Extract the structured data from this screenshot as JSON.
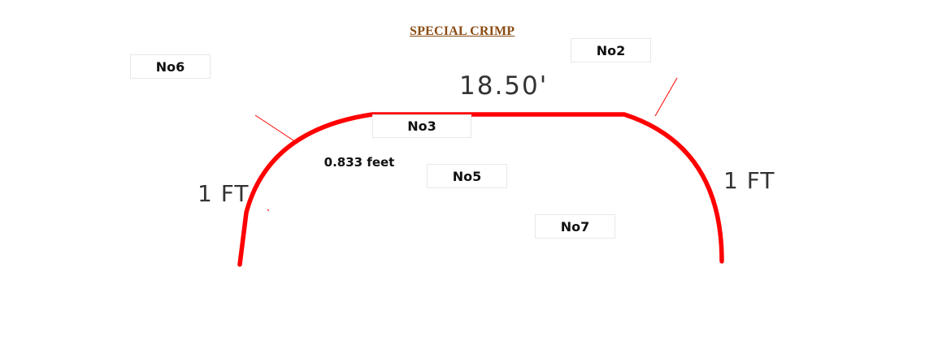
{
  "title": "SPECIAL CRIMP",
  "labels": {
    "no6": "No6",
    "no2": "No2",
    "no3": "No3",
    "no5": "No5",
    "no7": "No7"
  },
  "measurements": {
    "top_length": "18.50'",
    "radius": "0.833 feet",
    "left_side": "1 FT",
    "right_side": "1 FT"
  },
  "colors": {
    "profile_line": "#ff0000",
    "title": "#8a4b13"
  }
}
